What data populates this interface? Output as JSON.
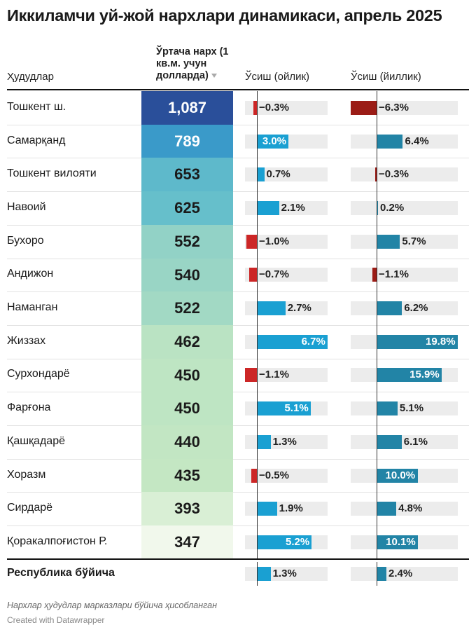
{
  "chart_data": {
    "type": "table",
    "title": "Иккиламчи уй-жой нархлари динамикаси, апрель 2025",
    "columns": {
      "region": "Ҳудудлар",
      "avg_price": "Ўртача нарх (1 кв.м. учун долларда)",
      "monthly": "Ўсиш (ойлик)",
      "yearly": "Ўсиш (йиллик)"
    },
    "rows": [
      {
        "region": "Тошкент ш.",
        "avg": "1,087",
        "value": 1087,
        "monthly": -0.3,
        "monthly_label": "−0.3%",
        "yearly": -6.3,
        "yearly_label": "−6.3%"
      },
      {
        "region": "Самарқанд",
        "avg": "789",
        "value": 789,
        "monthly": 3.0,
        "monthly_label": "3.0%",
        "yearly": 6.4,
        "yearly_label": "6.4%"
      },
      {
        "region": "Тошкент вилояти",
        "avg": "653",
        "value": 653,
        "monthly": 0.7,
        "monthly_label": "0.7%",
        "yearly": -0.3,
        "yearly_label": "−0.3%"
      },
      {
        "region": "Навоий",
        "avg": "625",
        "value": 625,
        "monthly": 2.1,
        "monthly_label": "2.1%",
        "yearly": 0.2,
        "yearly_label": "0.2%"
      },
      {
        "region": "Бухоро",
        "avg": "552",
        "value": 552,
        "monthly": -1.0,
        "monthly_label": "−1.0%",
        "yearly": 5.7,
        "yearly_label": "5.7%"
      },
      {
        "region": "Андижон",
        "avg": "540",
        "value": 540,
        "monthly": -0.7,
        "monthly_label": "−0.7%",
        "yearly": -1.1,
        "yearly_label": "−1.1%"
      },
      {
        "region": "Наманган",
        "avg": "522",
        "value": 522,
        "monthly": 2.7,
        "monthly_label": "2.7%",
        "yearly": 6.2,
        "yearly_label": "6.2%"
      },
      {
        "region": "Жиззах",
        "avg": "462",
        "value": 462,
        "monthly": 6.7,
        "monthly_label": "6.7%",
        "yearly": 19.8,
        "yearly_label": "19.8%"
      },
      {
        "region": "Сурхондарё",
        "avg": "450",
        "value": 450,
        "monthly": -1.1,
        "monthly_label": "−1.1%",
        "yearly": 15.9,
        "yearly_label": "15.9%"
      },
      {
        "region": "Фарғона",
        "avg": "450",
        "value": 450,
        "monthly": 5.1,
        "monthly_label": "5.1%",
        "yearly": 5.1,
        "yearly_label": "5.1%"
      },
      {
        "region": "Қашқадарё",
        "avg": "440",
        "value": 440,
        "monthly": 1.3,
        "monthly_label": "1.3%",
        "yearly": 6.1,
        "yearly_label": "6.1%"
      },
      {
        "region": "Хоразм",
        "avg": "435",
        "value": 435,
        "monthly": -0.5,
        "monthly_label": "−0.5%",
        "yearly": 10.0,
        "yearly_label": "10.0%"
      },
      {
        "region": "Сирдарё",
        "avg": "393",
        "value": 393,
        "monthly": 1.9,
        "monthly_label": "1.9%",
        "yearly": 4.8,
        "yearly_label": "4.8%"
      },
      {
        "region": "Қоракалпоғистон Р.",
        "avg": "347",
        "value": 347,
        "monthly": 5.2,
        "monthly_label": "5.2%",
        "yearly": 10.1,
        "yearly_label": "10.1%"
      }
    ],
    "total": {
      "region": "Республика бўйича",
      "monthly": 1.3,
      "monthly_label": "1.3%",
      "yearly": 2.4,
      "yearly_label": "2.4%"
    },
    "monthly_range": [
      -1.1,
      6.7
    ],
    "yearly_range": [
      -6.3,
      19.8
    ]
  },
  "colors": {
    "heat_scale": [
      "#f1f8ec",
      "#c6e8c3",
      "#9fd8c4",
      "#66bfcb",
      "#3a9ac9",
      "#2a4f9a"
    ],
    "monthly_pos": "#1aa0d2",
    "monthly_neg": "#cc2626",
    "yearly_pos": "#2284a6",
    "yearly_neg": "#9b1c16",
    "track": "#ececec"
  },
  "footer": {
    "note": "Нархлар ҳудудлар марказлари бўйича ҳисобланган",
    "credit": "Created with Datawrapper"
  }
}
